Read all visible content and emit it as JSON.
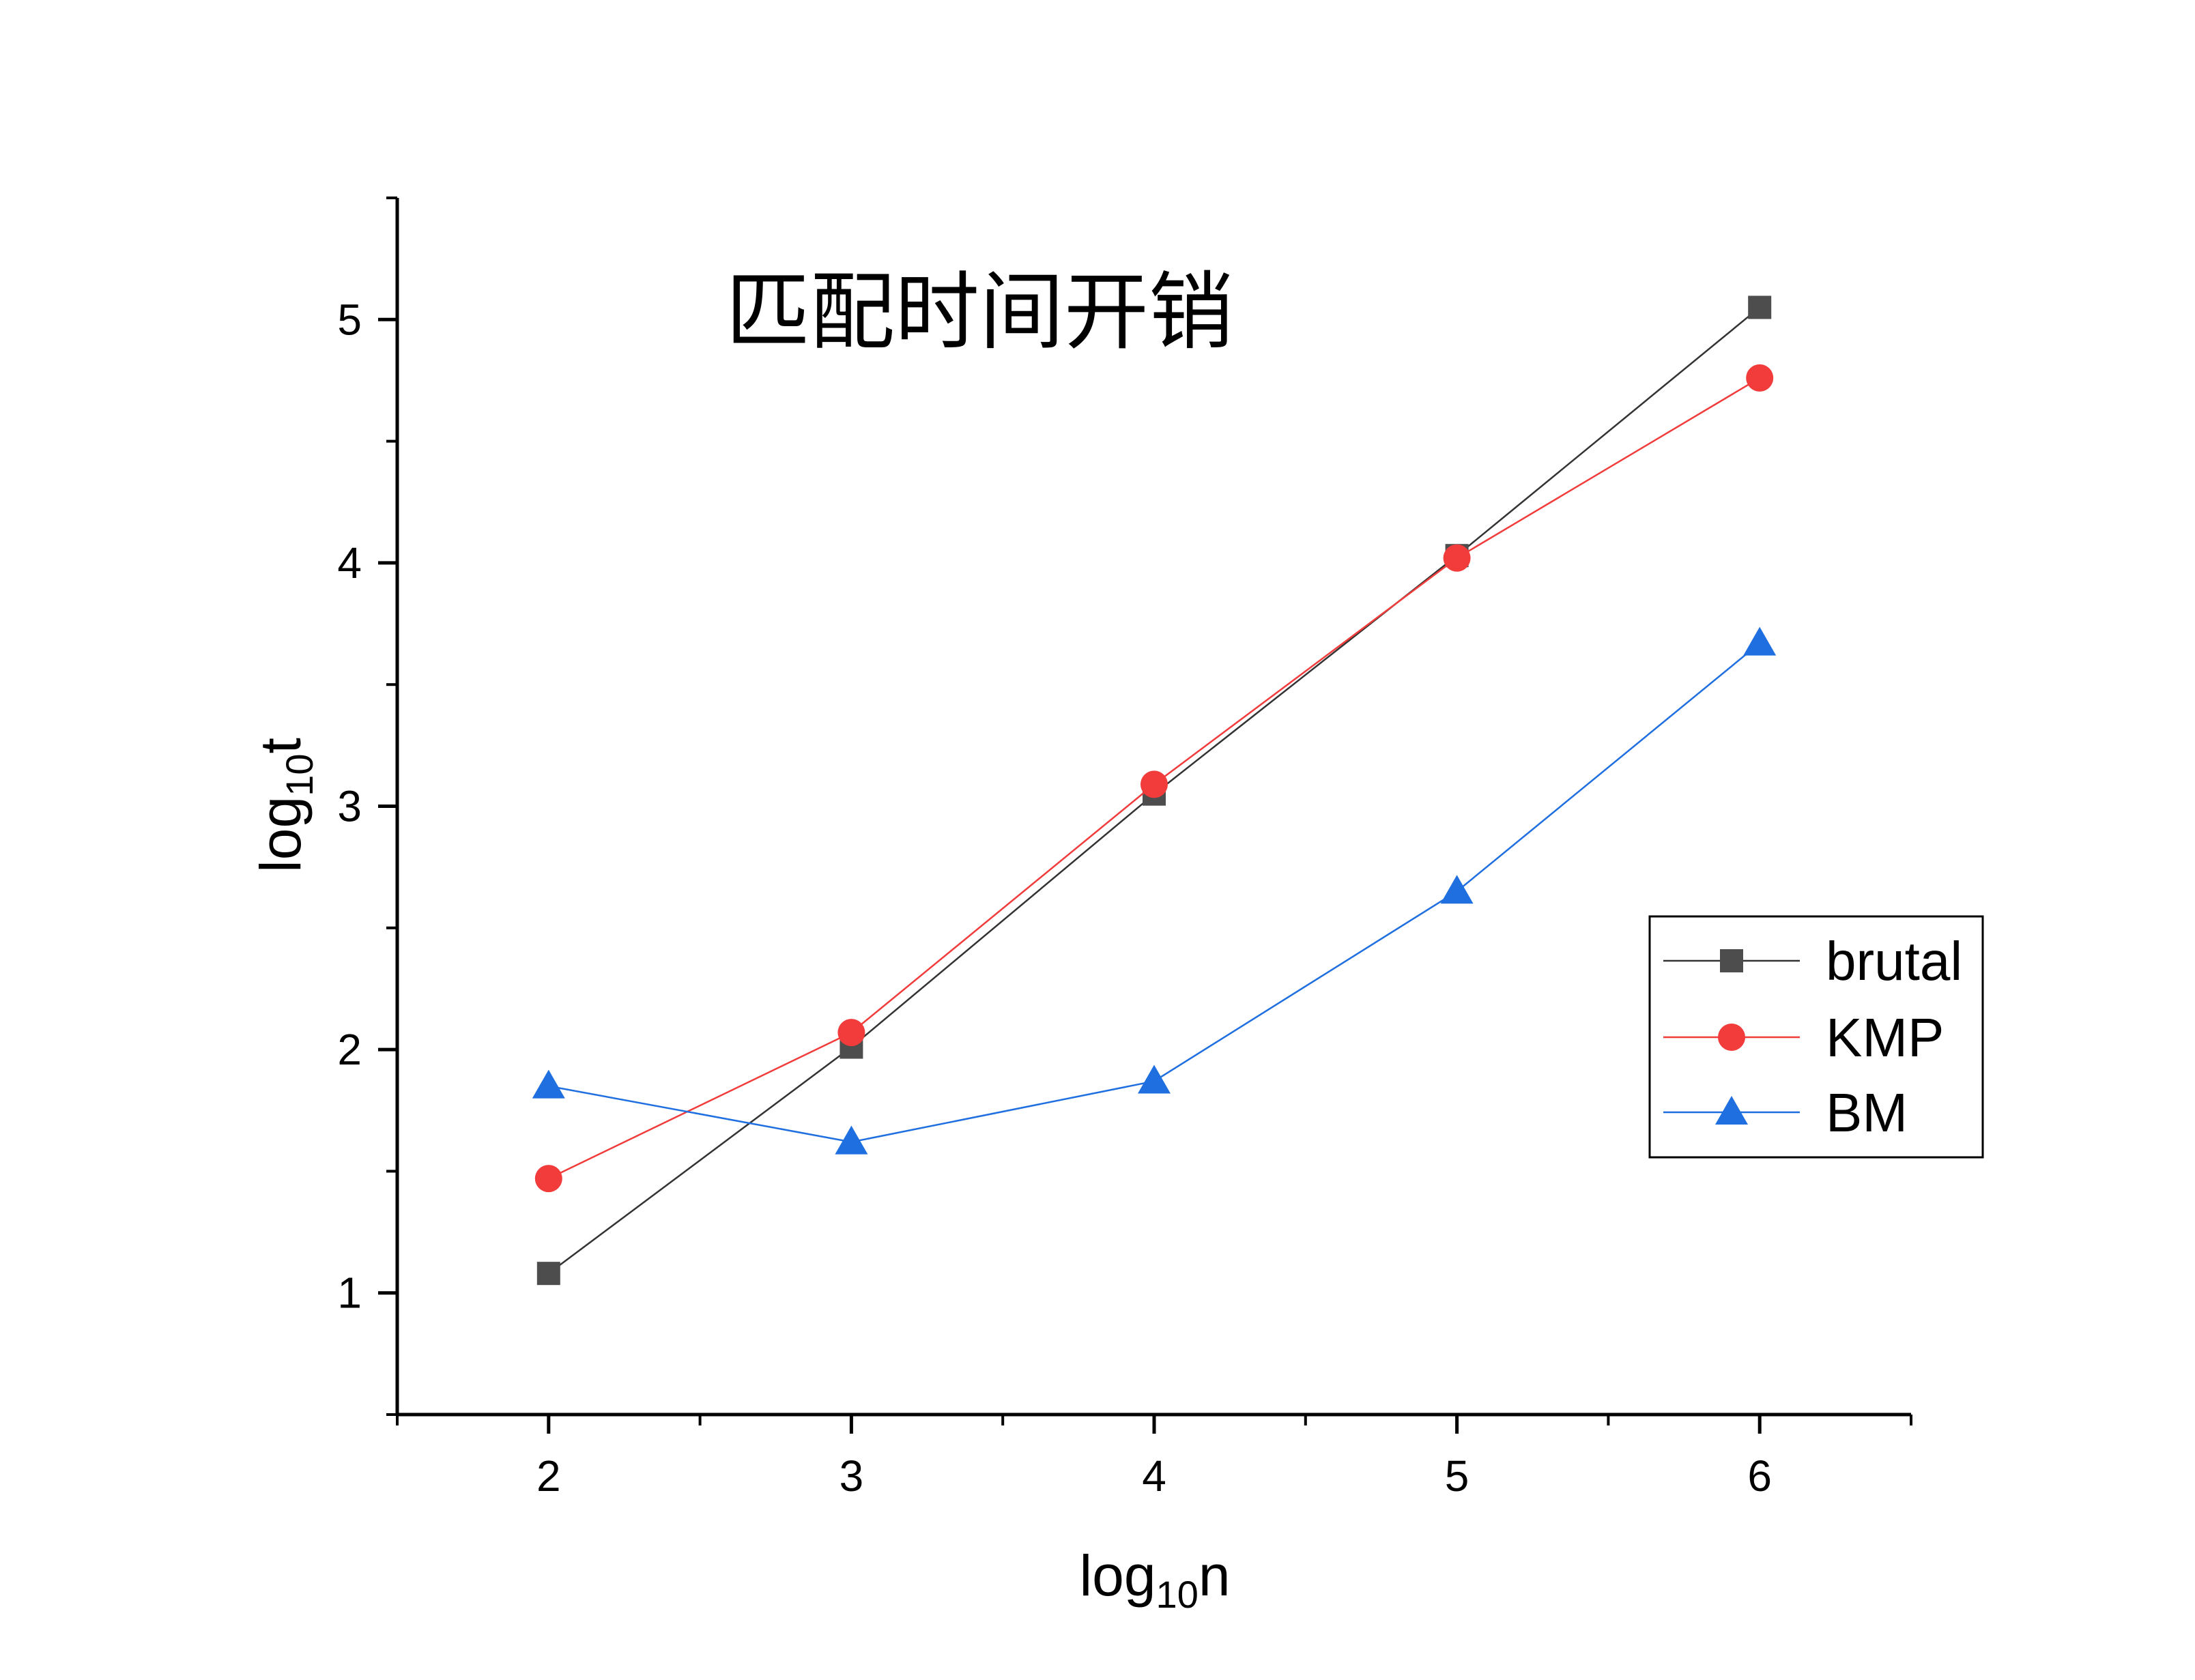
{
  "chart_data": {
    "type": "line",
    "title": "匹配时间开销",
    "xlabel": {
      "base": "log",
      "sub": "10",
      "var": "n"
    },
    "ylabel": {
      "base": "log",
      "sub": "10",
      "var": "t"
    },
    "xlim": [
      1.5,
      6.5
    ],
    "ylim": [
      0.5,
      5.5
    ],
    "x": [
      2,
      3,
      4,
      5,
      6
    ],
    "xticks": [
      "2",
      "3",
      "4",
      "5",
      "6"
    ],
    "yticks": [
      "1",
      "2",
      "3",
      "4",
      "5"
    ],
    "legend_position": "right",
    "series": [
      {
        "name": "brutal",
        "values": [
          1.08,
          2.01,
          3.05,
          4.03,
          5.05
        ],
        "marker": "square",
        "color": "#4d4d4d",
        "line_color": "#333333"
      },
      {
        "name": "KMP",
        "values": [
          1.47,
          2.07,
          3.09,
          4.02,
          4.76
        ],
        "marker": "circle",
        "color": "#f23c3c",
        "line_color": "#f23c3c"
      },
      {
        "name": "BM",
        "values": [
          1.85,
          1.62,
          1.87,
          2.65,
          3.67
        ],
        "marker": "triangle",
        "color": "#1f6fe0",
        "line_color": "#1f6fe0"
      }
    ]
  }
}
